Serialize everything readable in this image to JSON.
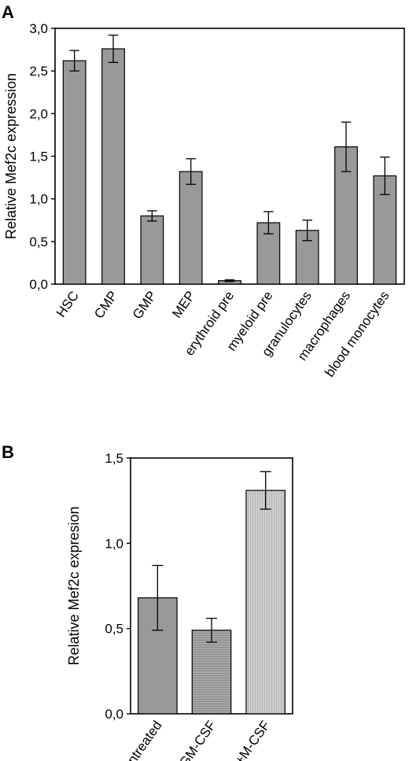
{
  "chart_data": [
    {
      "panel": "A",
      "type": "bar",
      "ylabel": "Relative Mef2c expression",
      "ylim": [
        0,
        3.0
      ],
      "yticks": [
        "0,0",
        "0,5",
        "1,0",
        "1,5",
        "2,0",
        "2,5",
        "3,0"
      ],
      "ytick_values": [
        0,
        0.5,
        1.0,
        1.5,
        2.0,
        2.5,
        3.0
      ],
      "categories": [
        "HSC",
        "CMP",
        "GMP",
        "MEP",
        "erythroid pre",
        "myeloid pre",
        "granulocytes",
        "macrophages",
        "blood monocytes"
      ],
      "values": [
        2.62,
        2.76,
        0.8,
        1.32,
        0.04,
        0.72,
        0.63,
        1.61,
        1.27
      ],
      "errors": [
        0.12,
        0.16,
        0.06,
        0.15,
        0.01,
        0.13,
        0.12,
        0.29,
        0.22
      ],
      "bar_color": "#999999",
      "grid": false
    },
    {
      "panel": "B",
      "type": "bar",
      "ylabel": "Relative Mef2c expresion",
      "ylim": [
        0,
        1.5
      ],
      "yticks": [
        "0,0",
        "0,5",
        "1,0",
        "1,5"
      ],
      "ytick_values": [
        0,
        0.5,
        1.0,
        1.5
      ],
      "categories": [
        "untreated",
        "+GM-CSF",
        "+M-CSF"
      ],
      "values": [
        0.68,
        0.49,
        1.31
      ],
      "errors": [
        0.19,
        0.07,
        0.11
      ],
      "bar_colors": [
        "#999999",
        "#a6a6a6",
        "#cccccc"
      ],
      "bar_patterns": [
        "solid",
        "horizontal-lines",
        "vertical-lines"
      ],
      "grid": false
    }
  ]
}
